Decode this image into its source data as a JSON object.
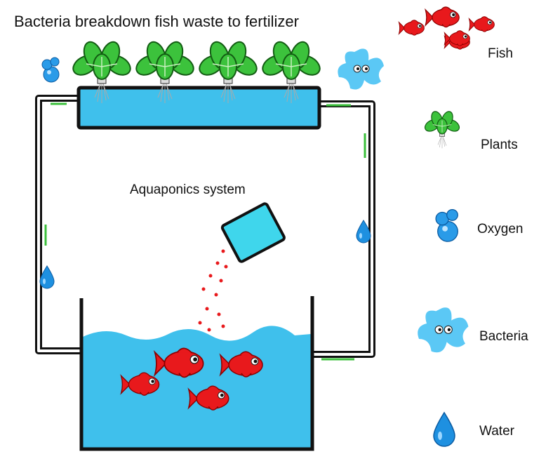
{
  "title": "Bacteria breakdown fish waste to fertilizer",
  "system_label": "Aquaponics system",
  "legend": [
    {
      "label": "Fish"
    },
    {
      "label": "Plants"
    },
    {
      "label": "Oxygen"
    },
    {
      "label": "Bacteria"
    },
    {
      "label": "Water"
    }
  ]
}
